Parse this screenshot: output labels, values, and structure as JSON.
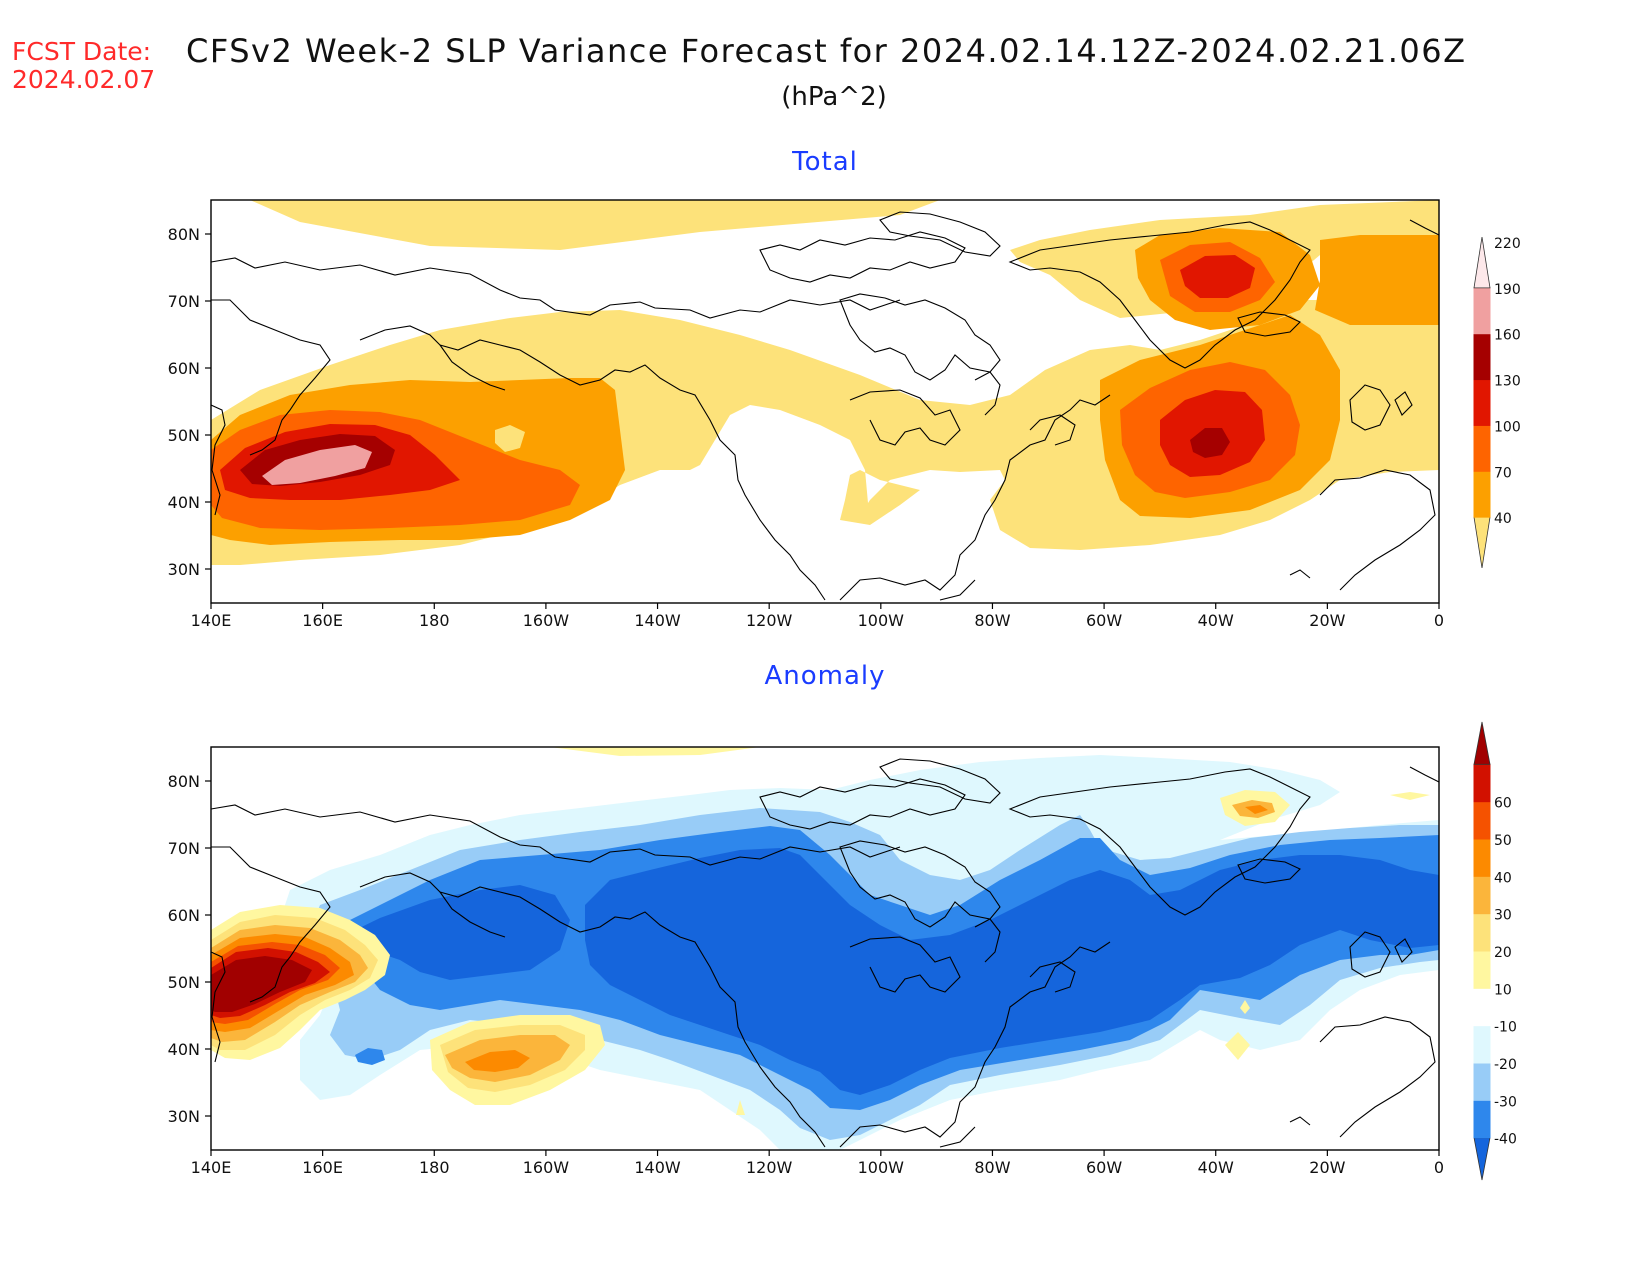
{
  "header": {
    "fcst_label": "FCST Date:",
    "fcst_date": "2024.02.07",
    "title": "CFSv2 Week-2 SLP Variance Forecast for 2024.02.14.12Z-2024.02.21.06Z",
    "units": "(hPa^2)"
  },
  "axes": {
    "lat_labels": [
      "80N",
      "70N",
      "60N",
      "50N",
      "40N",
      "30N"
    ],
    "lon_labels": [
      "140E",
      "160E",
      "180",
      "160W",
      "140W",
      "120W",
      "100W",
      "80W",
      "60W",
      "40W",
      "20W",
      "0"
    ]
  },
  "panels": [
    {
      "title": "Total",
      "colorbar": {
        "levels": [
          "40",
          "70",
          "100",
          "130",
          "160",
          "190",
          "220"
        ],
        "colors": [
          "#fde27a",
          "#fca000",
          "#fe6400",
          "#e11600",
          "#a50000",
          "#f0a0a0",
          "#fde8ea"
        ]
      }
    },
    {
      "title": "Anomaly",
      "colorbar": {
        "levels": [
          "-40",
          "-30",
          "-20",
          "-10",
          "10",
          "20",
          "30",
          "40",
          "50",
          "60"
        ],
        "colors": [
          "#1565dc",
          "#2e87ec",
          "#98ccf7",
          "#dff8fe",
          "#ffffff",
          "#fff7a0",
          "#fde27a",
          "#fbb53b",
          "#fc8a00",
          "#f55200",
          "#d21100",
          "#a10000"
        ]
      }
    }
  ]
}
